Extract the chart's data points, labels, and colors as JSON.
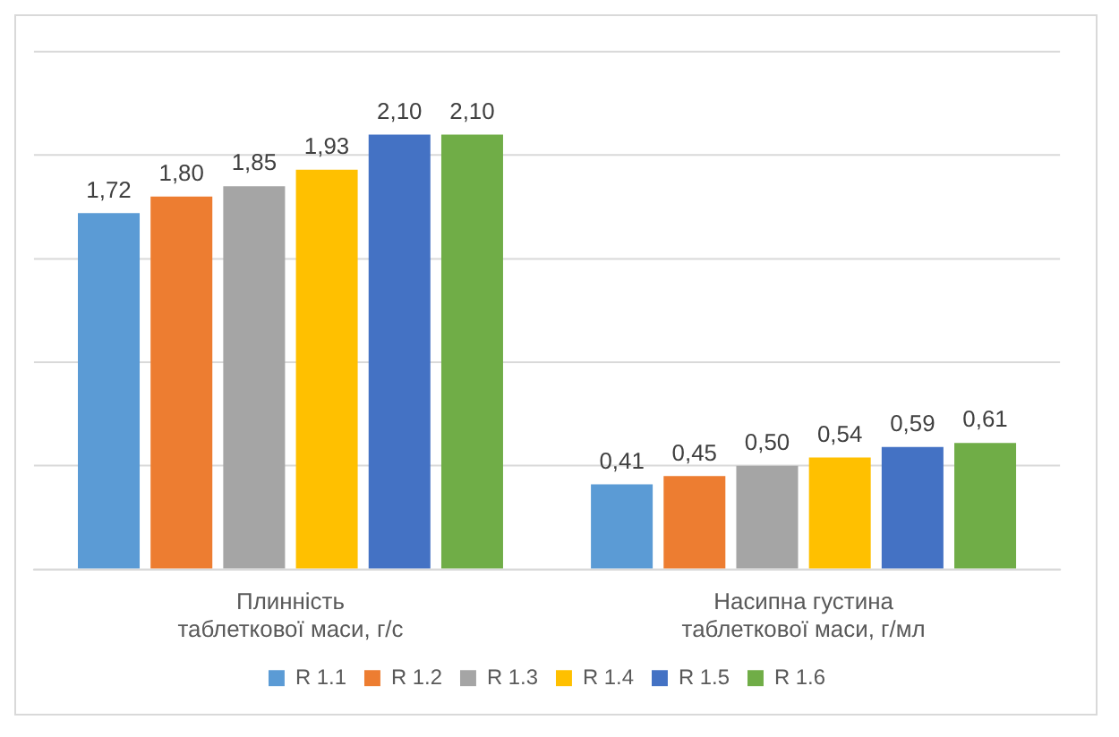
{
  "chart_data": {
    "type": "bar",
    "categories": [
      "Плинність\nтаблеткової маси, г/с",
      "Насипна густина\nтаблеткової маси, г/мл"
    ],
    "series": [
      {
        "name": "R 1.1",
        "color": "#5b9bd5",
        "values": [
          1.72,
          0.41
        ],
        "value_labels": [
          "1,72",
          "0,41"
        ]
      },
      {
        "name": "R 1.2",
        "color": "#ed7d31",
        "values": [
          1.8,
          0.45
        ],
        "value_labels": [
          "1,80",
          "0,45"
        ]
      },
      {
        "name": "R 1.3",
        "color": "#a5a5a5",
        "values": [
          1.85,
          0.5
        ],
        "value_labels": [
          "1,85",
          "0,50"
        ]
      },
      {
        "name": "R 1.4",
        "color": "#ffc000",
        "values": [
          1.93,
          0.54
        ],
        "value_labels": [
          "1,93",
          "0,54"
        ]
      },
      {
        "name": "R 1.5",
        "color": "#4472c4",
        "values": [
          2.1,
          0.59
        ],
        "value_labels": [
          "2,10",
          "0,59"
        ]
      },
      {
        "name": "R 1.6",
        "color": "#70ad47",
        "values": [
          2.1,
          0.61
        ],
        "value_labels": [
          "2,10",
          "0,61"
        ]
      }
    ],
    "ylim": [
      0,
      2.5
    ],
    "yticks": [
      0,
      {
        "value": 0.5,
        "label": null
      },
      {
        "value": 1,
        "label": null
      },
      {
        "value": 1.5,
        "label": null
      },
      {
        "value": 2,
        "label": null
      },
      {
        "value": 2.5,
        "label": null
      }
    ],
    "grid": "y",
    "legend": "bottom",
    "tick_labels": "x"
  }
}
